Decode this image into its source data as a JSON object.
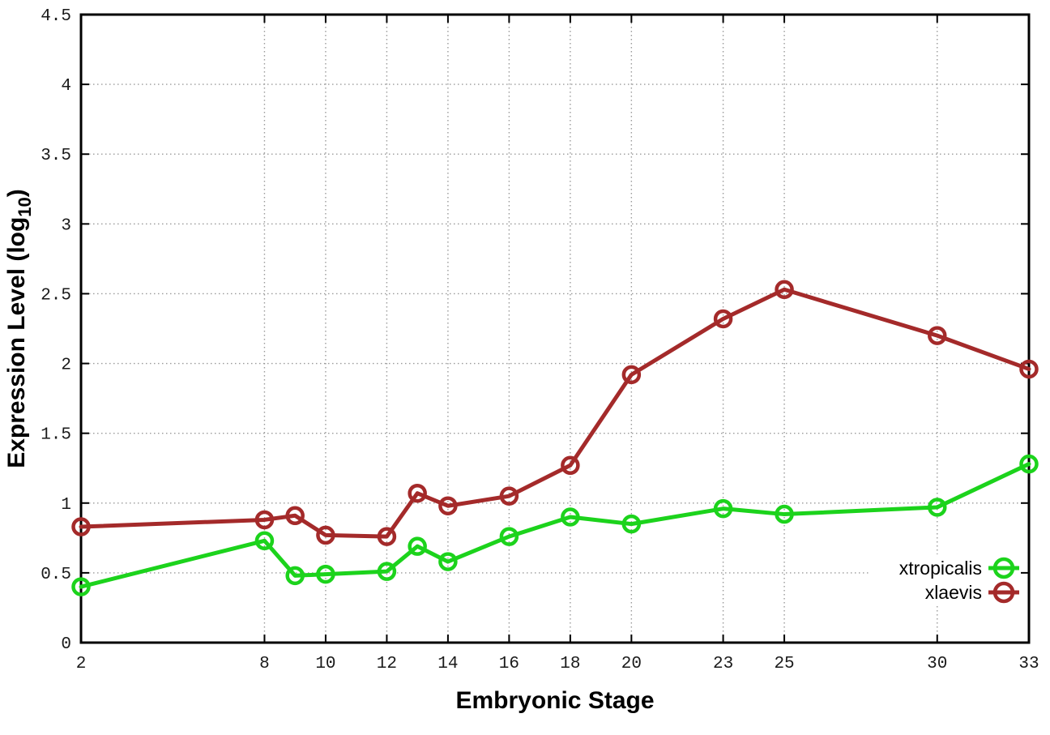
{
  "chart_data": {
    "type": "line",
    "title": "",
    "xlabel": "Embryonic Stage",
    "ylabel_parts": {
      "prefix": "Expression Level (log",
      "subscript": "10",
      "suffix": ")"
    },
    "xlim": [
      2,
      33
    ],
    "ylim": [
      0,
      4.5
    ],
    "x_ticks": [
      2,
      8,
      10,
      12,
      14,
      16,
      18,
      20,
      23,
      25,
      30,
      33
    ],
    "y_ticks": [
      0,
      0.5,
      1,
      1.5,
      2,
      2.5,
      3,
      3.5,
      4,
      4.5
    ],
    "grid": true,
    "legend_position": "bottom-right",
    "x": [
      2,
      8,
      9,
      10,
      12,
      13,
      14,
      16,
      18,
      20,
      23,
      25,
      30,
      33
    ],
    "series": [
      {
        "name": "xtropicalis",
        "color": "#1cd31c",
        "marker": "open-circle",
        "values": [
          0.4,
          0.73,
          0.48,
          0.49,
          0.51,
          0.69,
          0.58,
          0.76,
          0.9,
          0.85,
          0.96,
          0.92,
          0.97,
          1.28
        ]
      },
      {
        "name": "xlaevis",
        "color": "#a42a2a",
        "marker": "open-circle",
        "values": [
          0.83,
          0.88,
          0.91,
          0.77,
          0.76,
          1.07,
          0.98,
          1.05,
          1.27,
          1.92,
          2.32,
          2.53,
          2.2,
          1.96
        ]
      }
    ]
  },
  "style": {
    "background": "#ffffff",
    "frame_color": "#000000",
    "grid_color": "#9a9a9a",
    "tick_label_color": "#1a1a1a",
    "axis_title_color": "#000000",
    "legend_text_color": "#000000"
  }
}
